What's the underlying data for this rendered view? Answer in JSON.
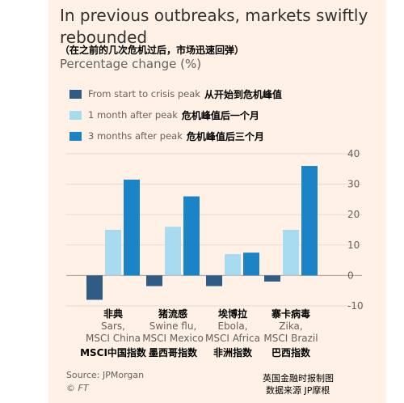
{
  "title": "In previous outbreaks, markets swiftly rebounded",
  "subtitle_cn": "（在之前的几次危机过后，市场迅速回弹）",
  "units": "Percentage change (%)",
  "legend": [
    {
      "en": "From start to crisis peak",
      "cn": "从开始到危机峰值",
      "color": "#2f5c85"
    },
    {
      "en": "1 month after peak",
      "cn": "危机峰值后一个月",
      "color": "#a8dbef"
    },
    {
      "en": "3 months after peak",
      "cn": "危机峰值后三个月",
      "color": "#1b84c6"
    }
  ],
  "source": "Source: JPMorgan",
  "ft": "© FT",
  "footer_cn_1": "英国金融时报制图",
  "footer_cn_2": "数据来源 JP摩根",
  "chart_data": {
    "type": "bar",
    "categories": [
      {
        "cn": "非典",
        "en1": "Sars,",
        "en2": "MSCI China",
        "cn2": "MSCI中国指数"
      },
      {
        "cn": "猪流感",
        "en1": "Swine flu,",
        "en2": "MSCI Mexico",
        "cn2": "墨西哥指数"
      },
      {
        "cn": "埃博拉",
        "en1": "Ebola,",
        "en2": "MSCI Africa",
        "cn2": "非洲指数"
      },
      {
        "cn": "寨卡病毒",
        "en1": "Zika,",
        "en2": "MSCI Brazil",
        "cn2": "巴西指数"
      }
    ],
    "series": [
      {
        "name": "From start to crisis peak",
        "values": [
          -8,
          -3.5,
          -3.5,
          -2
        ]
      },
      {
        "name": "1 month after peak",
        "values": [
          15,
          16,
          7,
          15
        ]
      },
      {
        "name": "3 months after peak",
        "values": [
          31.5,
          26,
          7.5,
          36
        ]
      }
    ],
    "ylim": [
      -10,
      40
    ],
    "yticks": [
      40,
      30,
      20,
      10,
      0,
      -10
    ],
    "grid": true
  }
}
